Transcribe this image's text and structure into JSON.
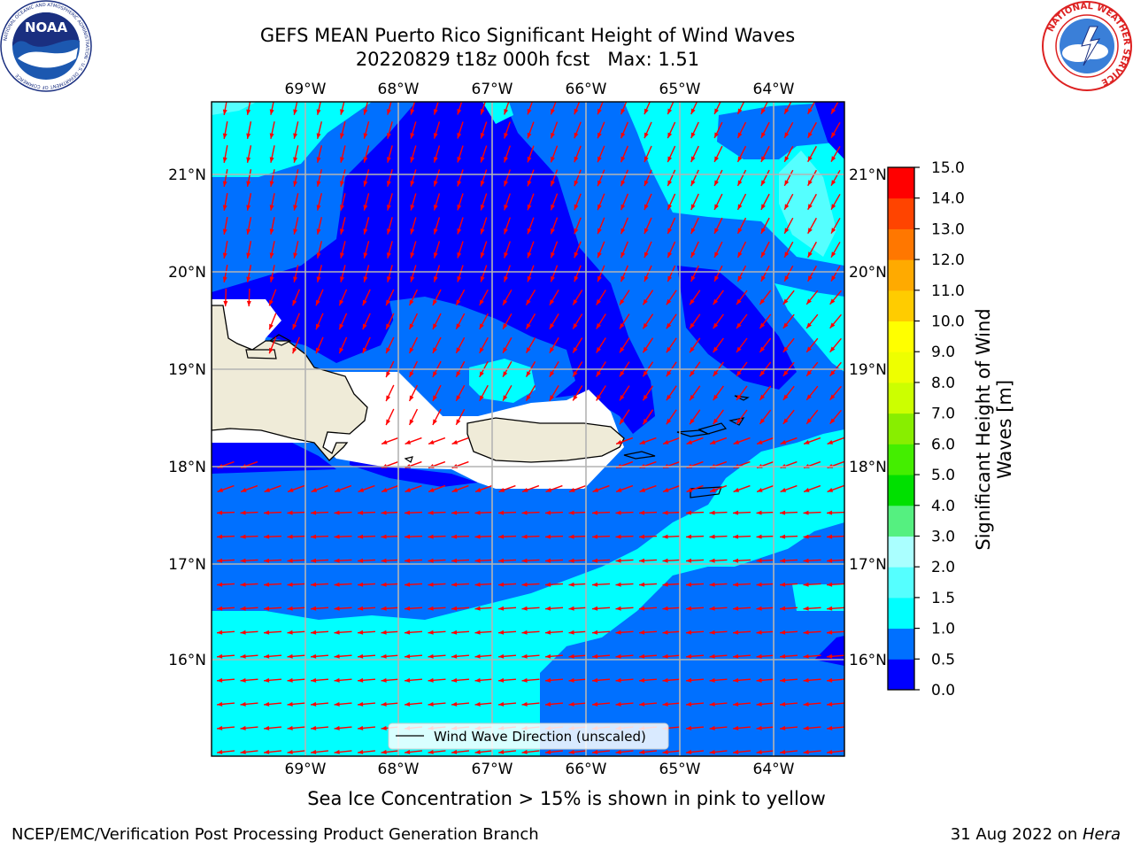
{
  "title": {
    "line1": "GEFS MEAN Puerto Rico Significant Height of Wind Waves",
    "line2": "20220829 t18z 000h fcst   Max: 1.51"
  },
  "logos": {
    "left_icon": "noaa-logo-icon",
    "left_text": "NOAA",
    "left_ring_text": "NATIONAL OCEANIC AND ATMOSPHERIC ADMINISTRATION · U.S. DEPARTMENT OF COMMERCE",
    "right_icon": "nws-logo-icon",
    "right_ring_text": "NATIONAL WEATHER SERVICE"
  },
  "map": {
    "lon_labels": [
      "69°W",
      "68°W",
      "67°W",
      "66°W",
      "65°W",
      "64°W"
    ],
    "lat_labels": [
      "21°N",
      "20°N",
      "19°N",
      "18°N",
      "17°N",
      "16°N"
    ],
    "legend_label": "Wind Wave Direction (unscaled)",
    "colors": {
      "c0": "#0000ff",
      "c1": "#0070ff",
      "c2": "#00ffff",
      "c3": "#55ffff",
      "c4": "#aaffff",
      "land": "#efebd8",
      "arrow": "#ff0000",
      "grid": "#b4b4b4"
    }
  },
  "colorbar": {
    "label": "Significant Height of Wind Waves [m]",
    "ticks": [
      "0.0",
      "0.5",
      "1.0",
      "1.5",
      "2.0",
      "3.0",
      "4.0",
      "5.0",
      "6.0",
      "7.0",
      "8.0",
      "9.0",
      "10.0",
      "11.0",
      "12.0",
      "13.0",
      "14.0",
      "15.0"
    ],
    "colors": [
      "#0000ff",
      "#0070ff",
      "#00ffff",
      "#55ffff",
      "#aaffff",
      "#55f080",
      "#00e000",
      "#44ee00",
      "#88ee00",
      "#ccff00",
      "#eeff00",
      "#ffff00",
      "#ffcc00",
      "#ffaa00",
      "#ff7700",
      "#ff4400",
      "#ff0000"
    ]
  },
  "caption": "Sea Ice Concentration > 15% is shown in pink to yellow",
  "footer": {
    "left": "NCEP/EMC/Verification Post Processing Product Generation Branch",
    "right_prefix": "31 Aug 2022 on ",
    "right_host": "Hera"
  }
}
